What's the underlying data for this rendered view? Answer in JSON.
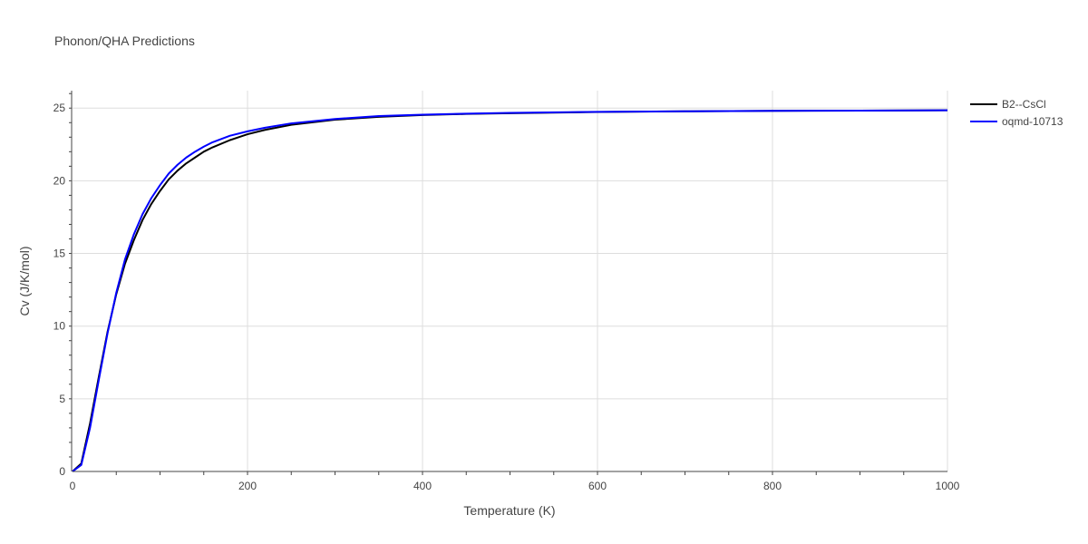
{
  "chart_data": {
    "type": "line",
    "title": "Phonon/QHA Predictions",
    "xlabel": "Temperature (K)",
    "ylabel": "Cv (J/K/mol)",
    "xlim": [
      0,
      1000
    ],
    "ylim": [
      0,
      26.2
    ],
    "x_ticks": [
      "0",
      "200",
      "400",
      "600",
      "800",
      "1000"
    ],
    "y_ticks": [
      "0",
      "5",
      "10",
      "15",
      "20",
      "25"
    ],
    "grid": true,
    "legend_position": "top-right",
    "series": [
      {
        "name": "B2--CsCl",
        "color": "#000000",
        "x": [
          0,
          10,
          20,
          30,
          40,
          50,
          60,
          70,
          80,
          90,
          100,
          110,
          120,
          130,
          140,
          150,
          160,
          180,
          200,
          220,
          250,
          300,
          350,
          400,
          450,
          500,
          600,
          700,
          800,
          900,
          1000
        ],
        "y": [
          0,
          0.55,
          3.3,
          6.5,
          9.6,
          12.2,
          14.3,
          15.9,
          17.3,
          18.4,
          19.3,
          20.1,
          20.7,
          21.2,
          21.6,
          22.0,
          22.3,
          22.8,
          23.2,
          23.5,
          23.85,
          24.2,
          24.4,
          24.52,
          24.6,
          24.65,
          24.73,
          24.78,
          24.81,
          24.83,
          24.85
        ]
      },
      {
        "name": "oqmd-10713",
        "color": "#0000ff",
        "x": [
          0,
          10,
          20,
          30,
          40,
          50,
          60,
          70,
          80,
          90,
          100,
          110,
          120,
          130,
          140,
          150,
          160,
          180,
          200,
          220,
          250,
          300,
          350,
          400,
          450,
          500,
          600,
          700,
          800,
          900,
          1000
        ],
        "y": [
          0,
          0.45,
          3.0,
          6.3,
          9.5,
          12.3,
          14.6,
          16.3,
          17.7,
          18.8,
          19.7,
          20.5,
          21.1,
          21.6,
          22.0,
          22.35,
          22.65,
          23.1,
          23.4,
          23.65,
          23.95,
          24.25,
          24.45,
          24.55,
          24.62,
          24.67,
          24.74,
          24.78,
          24.81,
          24.83,
          24.85
        ]
      }
    ]
  }
}
